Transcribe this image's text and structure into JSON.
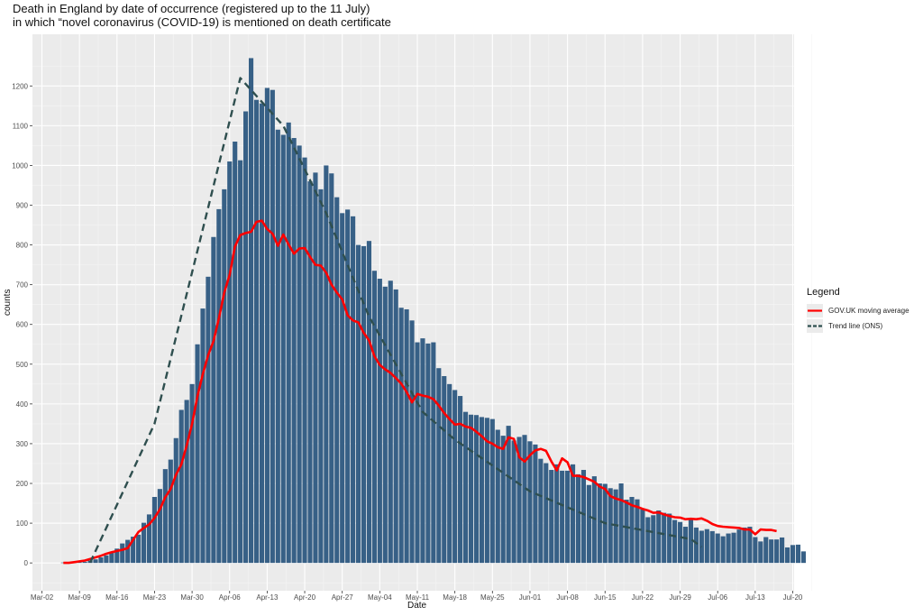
{
  "chart_data": {
    "type": "bar",
    "title": "Death in England by date of occurrence (registered up to the 11 July)",
    "subtitle": "in which “novel coronavirus (COVID-19) is mentioned on death certificate",
    "xlabel": "Date",
    "ylabel": "counts",
    "x_start_date": "Mar-06",
    "x_ticks": [
      "Mar-02",
      "Mar-09",
      "Mar-16",
      "Mar-23",
      "Mar-30",
      "Apr-06",
      "Apr-13",
      "Apr-20",
      "Apr-27",
      "May-04",
      "May-11",
      "May-18",
      "May-25",
      "Jun-01",
      "Jun-08",
      "Jun-15",
      "Jun-22",
      "Jun-29",
      "Jul-06",
      "Jul-13",
      "Jul-20"
    ],
    "y_ticks": [
      0,
      100,
      200,
      300,
      400,
      500,
      600,
      700,
      800,
      900,
      1000,
      1100,
      1200
    ],
    "ylim": [
      -70,
      1330
    ],
    "grid": true,
    "bar_color": "#376086",
    "daily_counts": [
      1,
      1,
      1,
      2,
      3,
      6,
      9,
      14,
      19,
      27,
      36,
      49,
      58,
      66,
      71,
      101,
      122,
      166,
      186,
      236,
      260,
      314,
      385,
      410,
      450,
      550,
      640,
      720,
      820,
      890,
      940,
      1010,
      1060,
      1013,
      1136,
      1270,
      1165,
      1156,
      1195,
      1190,
      1090,
      1077,
      1108,
      1069,
      1050,
      1020,
      960,
      982,
      940,
      1000,
      980,
      920,
      880,
      889,
      872,
      800,
      797,
      810,
      735,
      715,
      695,
      710,
      688,
      642,
      638,
      610,
      555,
      565,
      552,
      555,
      490,
      470,
      450,
      435,
      420,
      380,
      373,
      372,
      367,
      365,
      362,
      335,
      320,
      345,
      308,
      317,
      322,
      306,
      298,
      262,
      251,
      234,
      248,
      232,
      232,
      248,
      223,
      234,
      196,
      218,
      200,
      199,
      188,
      185,
      200,
      159,
      166,
      160,
      135,
      115,
      120,
      132,
      126,
      124,
      108,
      103,
      91,
      111,
      89,
      81,
      85,
      80,
      74,
      67,
      74,
      76,
      84,
      89,
      91,
      65,
      54,
      65,
      59,
      59,
      64,
      39,
      45,
      46,
      29
    ],
    "series": [
      {
        "name": "GOV.UK moving average",
        "color": "#ff0000",
        "values": [
          0,
          0,
          2,
          4,
          6,
          10,
          14,
          18,
          23,
          27,
          30,
          33,
          37,
          58,
          78,
          88,
          97,
          113,
          135,
          165,
          186,
          222,
          248,
          296,
          350,
          420,
          475,
          523,
          558,
          615,
          680,
          725,
          796,
          825,
          830,
          833,
          858,
          861,
          840,
          828,
          798,
          826,
          801,
          778,
          791,
          792,
          770,
          750,
          748,
          730,
          700,
          680,
          663,
          623,
          610,
          605,
          579,
          560,
          520,
          498,
          487,
          478,
          465,
          451,
          430,
          404,
          425,
          421,
          418,
          412,
          396,
          377,
          362,
          348,
          350,
          343,
          340,
          330,
          319,
          306,
          300,
          291,
          287,
          316,
          312,
          266,
          255,
          271,
          283,
          287,
          282,
          255,
          233,
          263,
          253,
          219,
          219,
          216,
          210,
          204,
          192,
          186,
          168,
          162,
          158,
          152,
          145,
          141,
          136,
          132,
          126,
          127,
          122,
          118,
          115,
          114,
          110,
          111,
          110,
          112,
          106,
          98,
          93,
          91,
          90,
          89,
          88,
          84,
          84,
          72,
          84,
          83,
          83,
          80
        ]
      },
      {
        "name": "Trend line (ONS)",
        "color": "#2f4f4f",
        "points": [
          [
            "Mar-11",
            1
          ],
          [
            "Mar-23",
            350
          ],
          [
            "Apr-08",
            1220
          ],
          [
            "Apr-16",
            1100
          ],
          [
            "Apr-24",
            880
          ],
          [
            "May-02",
            620
          ],
          [
            "May-12",
            380
          ],
          [
            "May-18",
            310
          ],
          [
            "Jun-01",
            180
          ],
          [
            "Jun-15",
            100
          ],
          [
            "Jul-01",
            60
          ],
          [
            "Jul-03",
            40
          ]
        ]
      }
    ],
    "legend": {
      "title": "Legend",
      "position": "right"
    }
  }
}
